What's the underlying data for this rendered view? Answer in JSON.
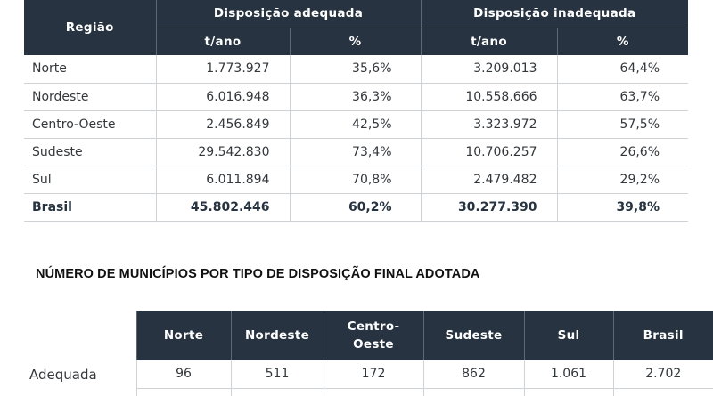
{
  "table1": {
    "region_header": "Região",
    "group_headers": [
      "Disposição adequada",
      "Disposição inadequada"
    ],
    "sub_headers": [
      "t/ano",
      "%",
      "t/ano",
      "%"
    ],
    "rows": [
      [
        "Norte",
        "1.773.927",
        "35,6%",
        "3.209.013",
        "64,4%"
      ],
      [
        "Nordeste",
        "6.016.948",
        "36,3%",
        "10.558.666",
        "63,7%"
      ],
      [
        "Centro-Oeste",
        "2.456.849",
        "42,5%",
        "3.323.972",
        "57,5%"
      ],
      [
        "Sudeste",
        "29.542.830",
        "73,4%",
        "10.706.257",
        "26,6%"
      ],
      [
        "Sul",
        "6.011.894",
        "70,8%",
        "2.479.482",
        "29,2%"
      ],
      [
        "Brasil",
        "45.802.446",
        "60,2%",
        "30.277.390",
        "39,8%"
      ]
    ]
  },
  "title": "NÚMERO DE MUNICÍPIOS POR TIPO DE DISPOSIÇÃO FINAL ADOTADA",
  "table2": {
    "headers": [
      "Norte",
      "Nordeste",
      "Centro-Oeste",
      "Sudeste",
      "Sul",
      "Brasil"
    ],
    "rows": [
      [
        "Adequada",
        "96",
        "511",
        "172",
        "862",
        "1.061",
        "2.702"
      ]
    ]
  }
}
